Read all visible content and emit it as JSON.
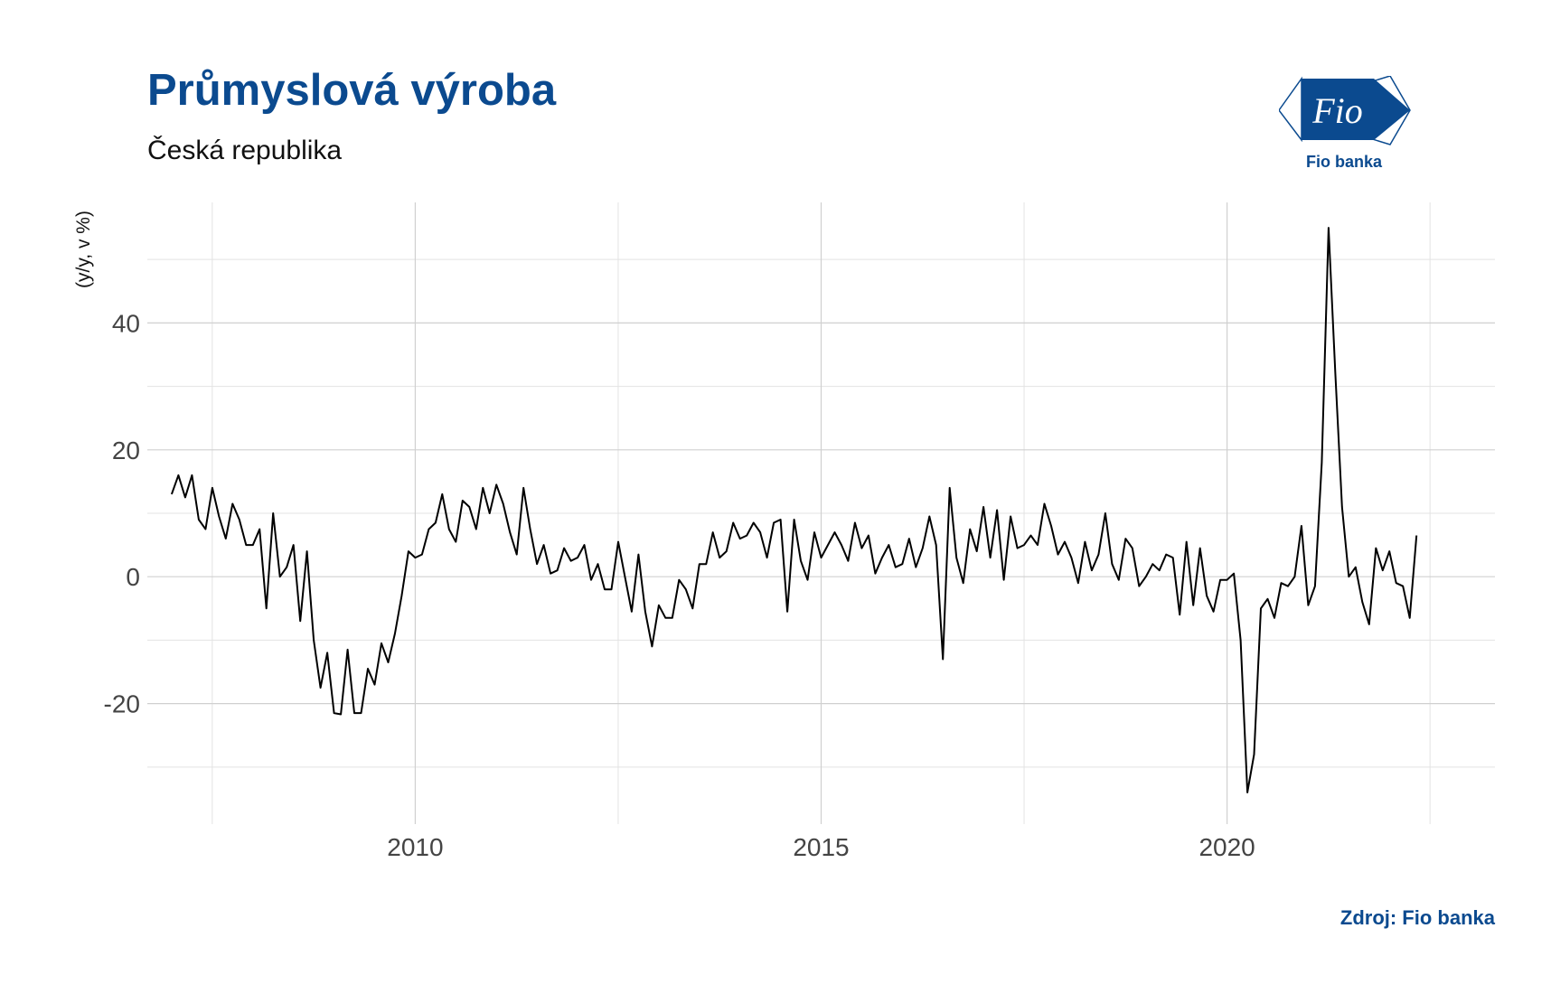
{
  "chart_data": {
    "type": "line",
    "title": "Průmyslová výroba",
    "subtitle": "Česká republika",
    "ylabel": "(y/y, v %)",
    "xlabel": "",
    "xlim": [
      2006.7,
      2023.3
    ],
    "ylim": [
      -39,
      59
    ],
    "xticks": [
      2010,
      2015,
      2020
    ],
    "yticks": [
      -20,
      0,
      20,
      40
    ],
    "grid": true,
    "legend": "none",
    "line_color": "#000000",
    "x_start": "2007-01",
    "frequency": "monthly",
    "series": [
      {
        "values": [
          13,
          16,
          12.5,
          16,
          9,
          7.5,
          14,
          9.5,
          6,
          11.5,
          9,
          5,
          5,
          7.5,
          -5,
          10,
          0,
          1.5,
          5,
          -7,
          4,
          -10,
          -17.5,
          -12,
          -21.5,
          -21.7,
          -11.5,
          -21.5,
          -21.5,
          -14.5,
          -17,
          -10.5,
          -13.5,
          -9,
          -3,
          4,
          3,
          3.5,
          7.5,
          8.5,
          13,
          7.5,
          5.5,
          12,
          11,
          7.5,
          14,
          10,
          14.5,
          11.5,
          7,
          3.5,
          14,
          7.5,
          2,
          5,
          0.5,
          1,
          4.5,
          2.5,
          3,
          5,
          -0.5,
          2,
          -2,
          -2,
          5.5,
          0,
          -5.5,
          3.5,
          -5.5,
          -11,
          -4.5,
          -6.5,
          -6.5,
          -0.5,
          -2,
          -5,
          2,
          2,
          7,
          3,
          4,
          8.5,
          6,
          6.5,
          8.5,
          7,
          3,
          8.5,
          9,
          -5.5,
          9,
          2.5,
          -0.5,
          7,
          3,
          5,
          7,
          5,
          2.5,
          8.5,
          4.5,
          6.5,
          0.5,
          3,
          5,
          1.5,
          2,
          6,
          1.5,
          4.5,
          9.5,
          5,
          -13,
          14,
          3,
          -1,
          7.5,
          4,
          11,
          3,
          10.5,
          -0.5,
          9.5,
          4.5,
          5,
          6.5,
          5,
          11.5,
          8,
          3.5,
          5.5,
          3,
          -1,
          5.5,
          1,
          3.5,
          10,
          2,
          -0.5,
          6,
          4.5,
          -1.5,
          0,
          2,
          1,
          3.5,
          3,
          -6,
          5.5,
          -4.5,
          4.5,
          -3,
          -5.5,
          -0.5,
          -0.5,
          0.5,
          -10,
          -34,
          -28,
          -5,
          -3.5,
          -6.5,
          -1,
          -1.5,
          0,
          8,
          -4.5,
          -1.5,
          18,
          55,
          32,
          11,
          0,
          1.5,
          -4,
          -7.5,
          4.5,
          1,
          4,
          -1,
          -1.5,
          -6.5,
          6.5
        ]
      }
    ]
  },
  "logo": {
    "wordmark": "Fio",
    "caption": "Fio banka",
    "color": "#0b4a8f"
  },
  "source": "Zdroj: Fio banka"
}
